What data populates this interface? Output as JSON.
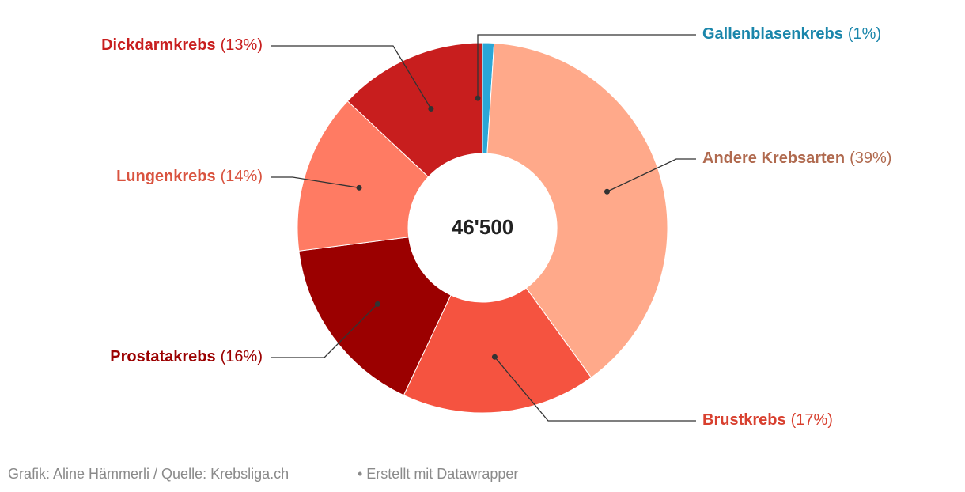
{
  "chart_data": {
    "type": "donut",
    "categories": [
      "Gallenblasenkrebs",
      "Andere Krebsarten",
      "Brustkrebs",
      "Prostatakrebs",
      "Lungenkrebs",
      "Dickdarmkrebs"
    ],
    "values": [
      1,
      39,
      17,
      16,
      14,
      13
    ],
    "value_labels": [
      "(1%)",
      "(39%)",
      "(17%)",
      "(16%)",
      "(14%)",
      "(13%)"
    ],
    "colors": [
      "#2aa6d6",
      "#ffa98a",
      "#f55340",
      "#9b0000",
      "#ff7b63",
      "#c81e1e"
    ],
    "label_colors": [
      "#1a86ab",
      "#b06a4f",
      "#d8402f",
      "#9b0000",
      "#d9533f",
      "#c81e1e"
    ],
    "center_label": "46'500",
    "source": "Grafik: Aline Hämmerli / Quelle: Krebsliga.ch",
    "credit": "• Erstellt mit Datawrapper"
  }
}
